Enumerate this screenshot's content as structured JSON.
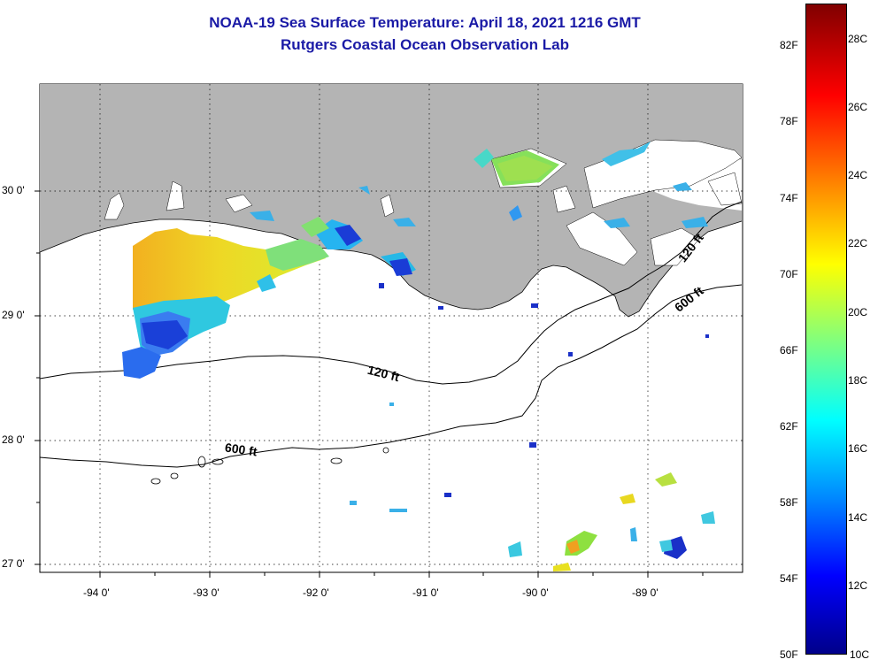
{
  "title": "NOAA-19 Sea Surface Temperature:  April 18, 2021 1216 GMT",
  "subtitle": "Rutgers Coastal Ocean Observation Lab",
  "map": {
    "lon_labels": [
      "-94 0'",
      "-93 0'",
      "-92 0'",
      "-91 0'",
      "-90 0'",
      "-89 0'"
    ],
    "lat_labels": [
      "30 0'",
      "29 0'",
      "28 0'",
      "27 0'"
    ],
    "contour_labels": {
      "c120_mid": "120 ft",
      "c120_east": "120 ft",
      "c600_west": "600 ft",
      "c600_east": "600 ft"
    },
    "colors": {
      "land": "#b4b4b4",
      "water": "#ffffff",
      "contour": "#000000",
      "grid": "#000000"
    }
  },
  "colorbar": {
    "f_labels": [
      "82F",
      "78F",
      "74F",
      "70F",
      "66F",
      "62F",
      "58F",
      "54F",
      "50F"
    ],
    "c_labels": [
      "28C",
      "26C",
      "24C",
      "22C",
      "20C",
      "18C",
      "16C",
      "14C",
      "12C",
      "10C"
    ],
    "colormap": "jet",
    "range_c": [
      10,
      29
    ]
  }
}
